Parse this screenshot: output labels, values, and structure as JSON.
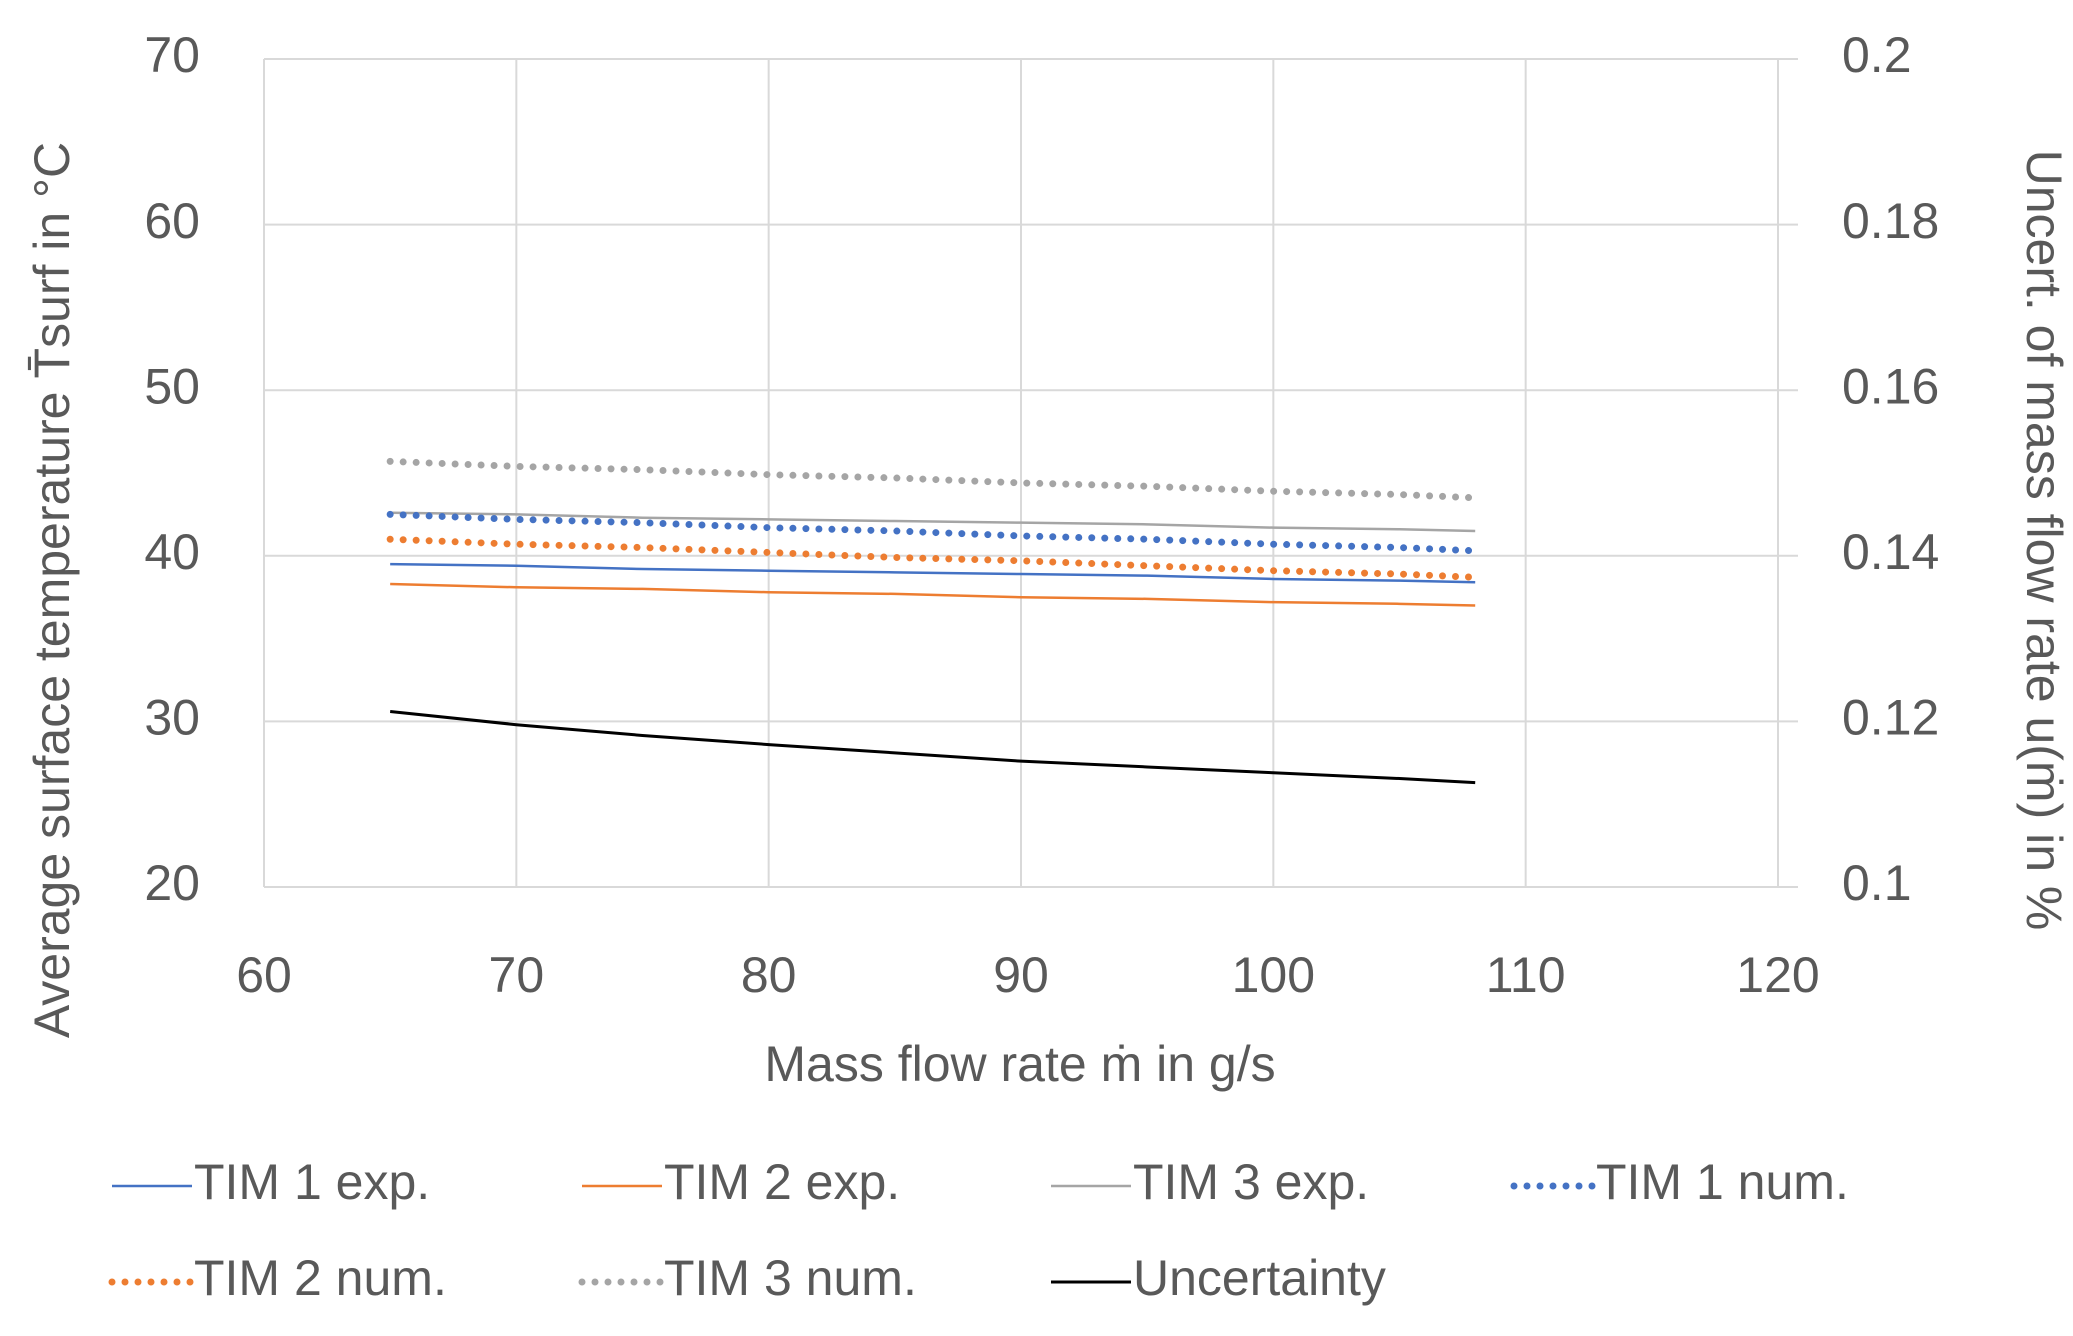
{
  "chart_data": {
    "type": "line",
    "xlabel": "Mass flow rate ṁ in g/s",
    "ylabel": "Average surface temperature T̄surf in °C",
    "y2label": "Uncert. of mass flow rate u(ṁ) in %",
    "x": [
      65,
      70,
      75,
      80,
      85,
      90,
      95,
      100,
      105,
      108
    ],
    "xlim": [
      60,
      120
    ],
    "xticks": [
      60,
      70,
      80,
      90,
      100,
      110,
      120
    ],
    "ylim": [
      20,
      70
    ],
    "yticks": [
      20,
      30,
      40,
      50,
      60,
      70
    ],
    "y2lim": [
      0.1,
      0.2
    ],
    "y2ticks": [
      0.1,
      0.12,
      0.14,
      0.16,
      0.18,
      0.2
    ],
    "grid": true,
    "legend": "bottom",
    "series": [
      {
        "name": "TIM 1 exp.",
        "color": "#4472c4",
        "style": "solid",
        "values": [
          39.5,
          39.4,
          39.2,
          39.1,
          39.0,
          38.9,
          38.8,
          38.6,
          38.5,
          38.4
        ]
      },
      {
        "name": "TIM 2 exp.",
        "color": "#ed7d31",
        "style": "solid",
        "values": [
          38.3,
          38.1,
          38.0,
          37.8,
          37.7,
          37.5,
          37.4,
          37.2,
          37.1,
          37.0
        ]
      },
      {
        "name": "TIM 3 exp.",
        "color": "#a5a5a5",
        "style": "solid",
        "values": [
          42.6,
          42.5,
          42.3,
          42.2,
          42.1,
          42.0,
          41.9,
          41.7,
          41.6,
          41.5
        ]
      },
      {
        "name": "TIM 1 num.",
        "color": "#4472c4",
        "style": "dotted",
        "values": [
          42.5,
          42.2,
          42.0,
          41.7,
          41.5,
          41.2,
          41.0,
          40.7,
          40.5,
          40.3
        ]
      },
      {
        "name": "TIM 2 num.",
        "color": "#ed7d31",
        "style": "dotted",
        "values": [
          41.0,
          40.7,
          40.5,
          40.2,
          39.9,
          39.7,
          39.4,
          39.1,
          38.9,
          38.7
        ]
      },
      {
        "name": "TIM 3 num.",
        "color": "#a5a5a5",
        "style": "dotted",
        "values": [
          45.7,
          45.4,
          45.2,
          44.9,
          44.7,
          44.4,
          44.2,
          43.9,
          43.7,
          43.5
        ]
      },
      {
        "name": "Uncertainty",
        "color": "#000000",
        "style": "solid",
        "axis": "y2",
        "values": [
          0.1212,
          0.1196,
          0.1183,
          0.1172,
          0.1162,
          0.1152,
          0.1145,
          0.1138,
          0.1131,
          0.1126
        ]
      }
    ]
  }
}
